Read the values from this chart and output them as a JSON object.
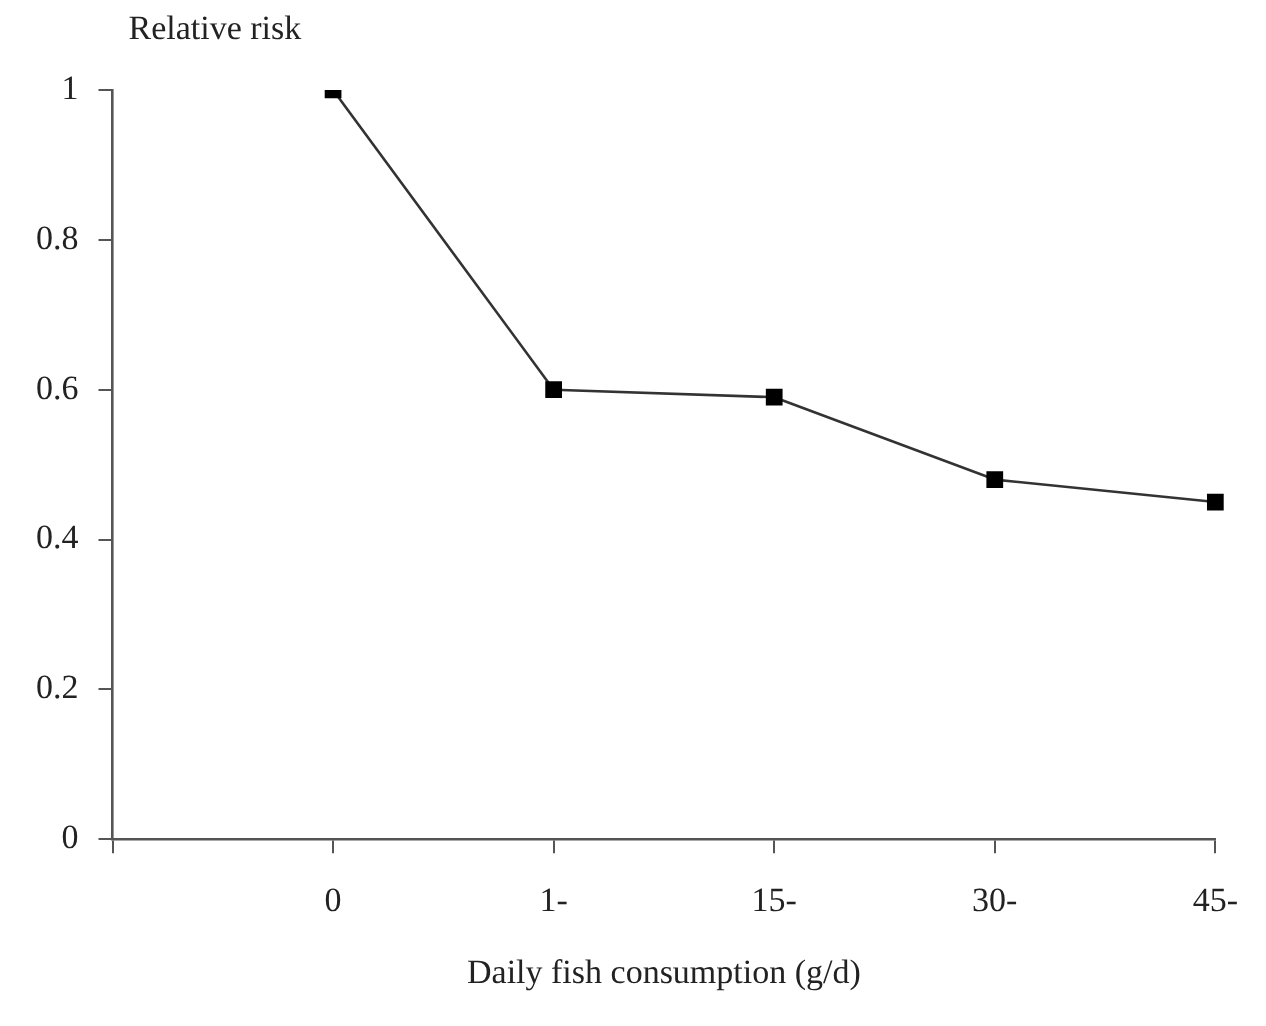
{
  "chart_data": {
    "type": "line",
    "ylabel": "Relative risk",
    "xlabel": "Daily fish consumption (g/d)",
    "categories": [
      null,
      "0",
      "1-",
      "15-",
      "30-",
      "45-"
    ],
    "series": [
      {
        "color": "#000000",
        "values": [
          null,
          1,
          0.6,
          0.59,
          0.48,
          0.45
        ]
      }
    ],
    "ylim": [
      0,
      1
    ],
    "yticks": [
      0,
      0.2,
      0.4,
      0.6,
      0.8,
      1
    ],
    "grid": false,
    "legend": false,
    "marker": "square",
    "line_style": "solid"
  }
}
